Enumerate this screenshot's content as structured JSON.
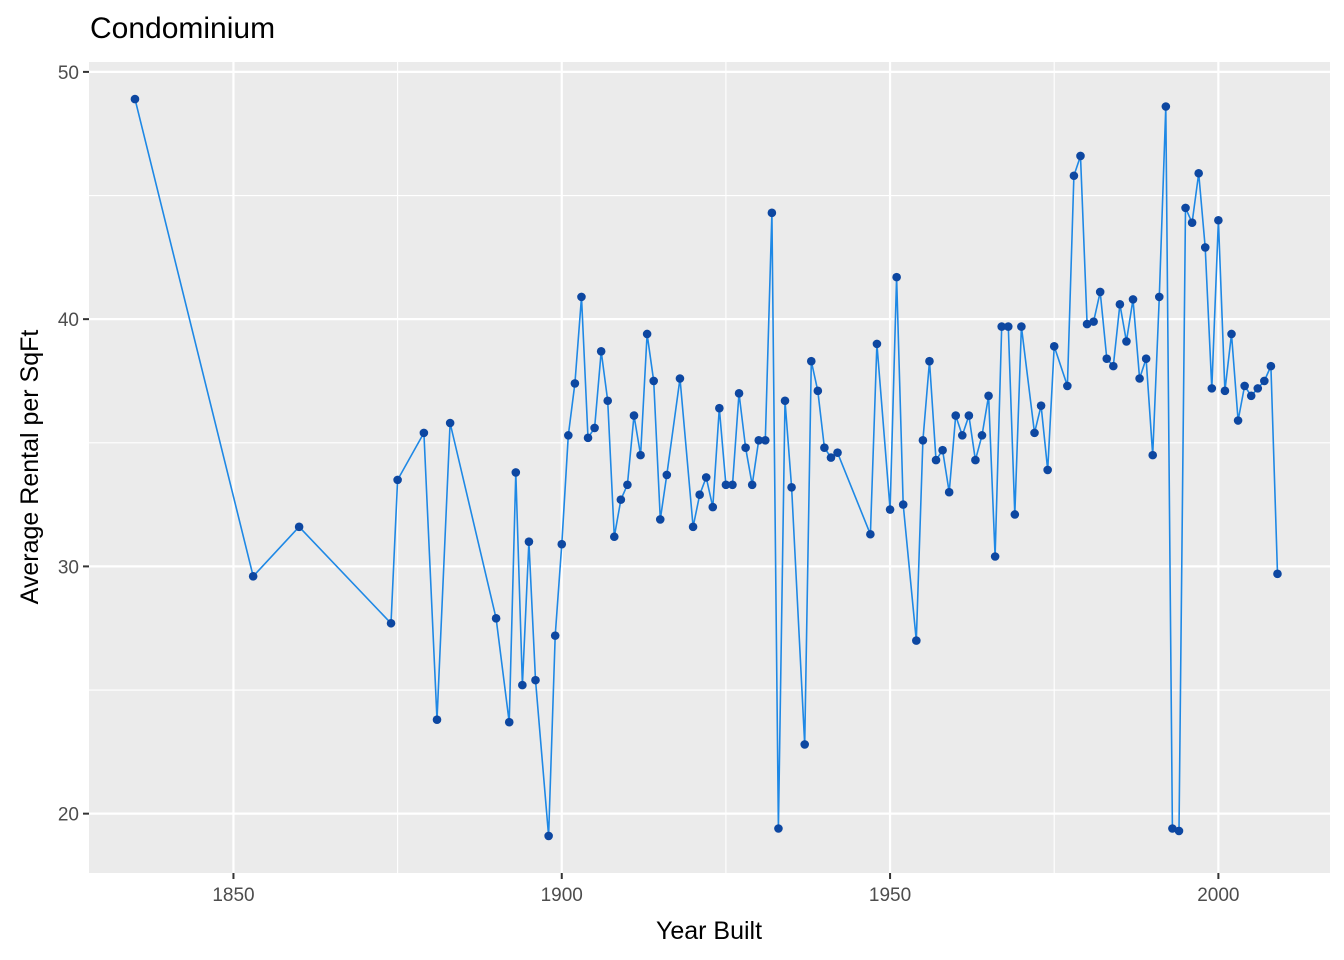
{
  "chart_data": {
    "type": "line",
    "title": "Condominium",
    "xlabel": "Year Built",
    "ylabel": "Average Rental per SqFt",
    "xlim": [
      1828,
      2017
    ],
    "ylim": [
      17.6,
      50.4
    ],
    "x_ticks": [
      1850,
      1900,
      1950,
      2000
    ],
    "y_ticks": [
      20,
      30,
      40,
      50
    ],
    "grid": true,
    "colors": {
      "panel": "#EBEBEB",
      "grid": "#FFFFFF",
      "line": "#1E88E5",
      "point": "#0D47A1"
    },
    "series": [
      {
        "x": [
          1835,
          1853,
          1860,
          1874,
          1875,
          1879,
          1881,
          1883,
          1890,
          1892,
          1893,
          1894,
          1895,
          1896,
          1898,
          1899,
          1900,
          1901,
          1902,
          1903,
          1904,
          1905,
          1906,
          1907,
          1908,
          1909,
          1910,
          1911,
          1912,
          1913,
          1914,
          1915,
          1916,
          1918,
          1920,
          1921,
          1922,
          1923,
          1924,
          1925,
          1926,
          1927,
          1928,
          1929,
          1930,
          1931,
          1932,
          1933,
          1934,
          1935,
          1937,
          1938,
          1939,
          1940,
          1941,
          1942,
          1947,
          1948,
          1950,
          1951,
          1952,
          1954,
          1955,
          1956,
          1957,
          1958,
          1959,
          1960,
          1961,
          1962,
          1963,
          1964,
          1965,
          1966,
          1967,
          1968,
          1969,
          1970,
          1972,
          1973,
          1974,
          1975,
          1977,
          1978,
          1979,
          1980,
          1981,
          1982,
          1983,
          1984,
          1985,
          1986,
          1987,
          1988,
          1989,
          1990,
          1991,
          1992,
          1993,
          1994,
          1995,
          1996,
          1997,
          1998,
          1999,
          2000,
          2001,
          2002,
          2003,
          2004,
          2005,
          2006,
          2007,
          2008,
          2009
        ],
        "y": [
          48.9,
          29.6,
          31.6,
          27.7,
          33.5,
          35.4,
          23.8,
          35.8,
          27.9,
          23.7,
          33.8,
          25.2,
          31.0,
          25.4,
          19.1,
          27.2,
          30.9,
          35.3,
          37.4,
          40.9,
          35.2,
          35.6,
          38.7,
          36.7,
          31.2,
          32.7,
          33.3,
          36.1,
          34.5,
          39.4,
          37.5,
          31.9,
          33.7,
          37.6,
          31.6,
          32.9,
          33.6,
          32.4,
          36.4,
          33.3,
          33.3,
          37.0,
          34.8,
          33.3,
          35.1,
          35.1,
          44.3,
          19.4,
          36.7,
          33.2,
          22.8,
          38.3,
          37.1,
          34.8,
          34.4,
          34.6,
          31.3,
          39.0,
          32.3,
          41.7,
          32.5,
          27.0,
          35.1,
          38.3,
          34.3,
          34.7,
          33.0,
          36.1,
          35.3,
          36.1,
          34.3,
          35.3,
          36.9,
          30.4,
          39.7,
          39.7,
          32.1,
          39.7,
          35.4,
          36.5,
          33.9,
          38.9,
          37.3,
          45.8,
          46.6,
          39.8,
          39.9,
          41.1,
          38.4,
          38.1,
          40.6,
          39.1,
          40.8,
          37.6,
          38.4,
          34.5,
          40.9,
          48.6,
          19.4,
          19.3,
          44.5,
          43.9,
          45.9,
          42.9,
          37.2,
          44.0,
          37.1,
          39.4,
          35.9,
          37.3,
          36.9,
          37.2,
          37.5,
          38.1,
          29.7
        ]
      }
    ]
  }
}
